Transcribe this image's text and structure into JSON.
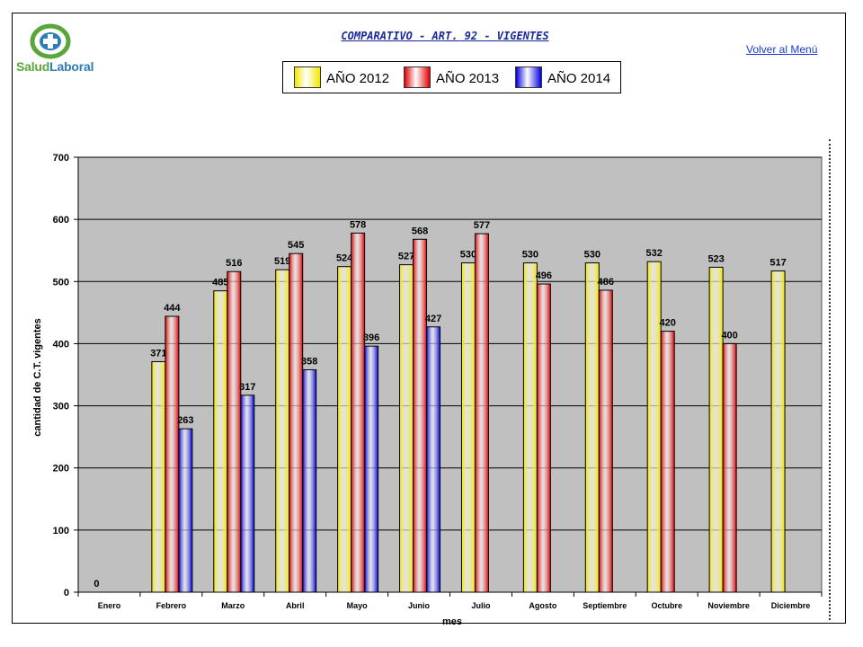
{
  "page": {
    "title": "COMPARATIVO  - ART. 92  - VIGENTES",
    "menu_link": "Volver al Menú ",
    "logo": {
      "part1": "Salud",
      "part2": "Laboral"
    }
  },
  "colors": {
    "y2012": "#f2e600",
    "y2013": "#e00000",
    "y2014": "#0000e0",
    "plot_bg": "#c0c0c0"
  },
  "chart_data": {
    "type": "bar",
    "title": "",
    "xlabel": "mes",
    "ylabel": "cantidad de C.T. vigentes",
    "ylim": [
      0,
      700
    ],
    "yticks": [
      0,
      100,
      200,
      300,
      400,
      500,
      600,
      700
    ],
    "grid": true,
    "legend_position": "top-center",
    "categories": [
      "Enero",
      "Febrero",
      "Marzo",
      "Abril",
      "Mayo",
      "Junio",
      "Julio",
      "Agosto",
      "Septiembre",
      "Octubre",
      "Noviembre",
      "Diciembre"
    ],
    "series": [
      {
        "name": "AÑO 2012",
        "color": "#f2e600",
        "values": [
          0,
          371,
          485,
          519,
          524,
          527,
          530,
          530,
          530,
          532,
          523,
          517
        ]
      },
      {
        "name": "AÑO 2013",
        "color": "#e00000",
        "values": [
          null,
          444,
          516,
          545,
          578,
          568,
          577,
          496,
          486,
          420,
          400,
          null
        ]
      },
      {
        "name": "AÑO 2014",
        "color": "#0000e0",
        "values": [
          null,
          263,
          317,
          358,
          396,
          427,
          null,
          null,
          null,
          null,
          null,
          null
        ]
      }
    ],
    "data_labels": [
      [
        "0",
        "371",
        "485",
        "519",
        "524",
        "527",
        "530",
        "530",
        "530",
        "532",
        "523",
        "517"
      ],
      [
        null,
        "444",
        "516",
        "545",
        "578",
        "568",
        "577",
        "496",
        "486",
        "420",
        "400",
        null
      ],
      [
        null,
        "263",
        "317",
        "358",
        "396",
        "427",
        null,
        null,
        null,
        null,
        null,
        null
      ]
    ]
  }
}
